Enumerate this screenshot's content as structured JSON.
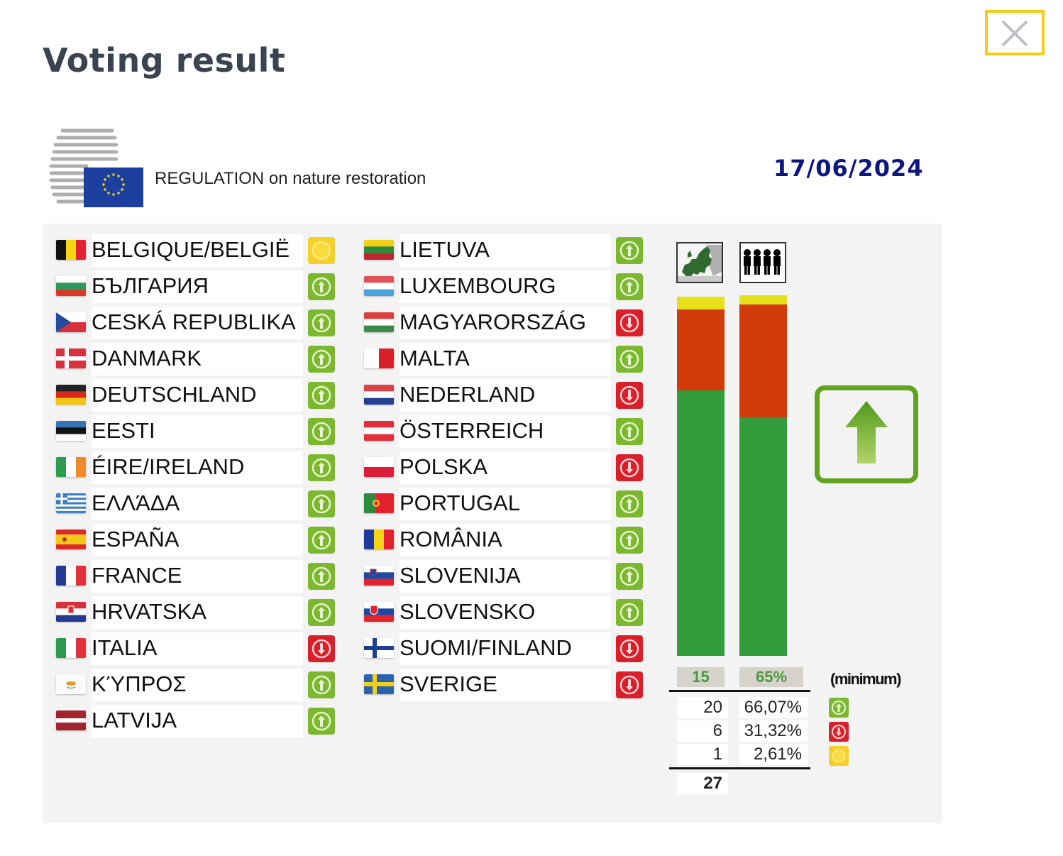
{
  "header": {
    "title": "Voting result",
    "close_icon": "close-icon"
  },
  "document": {
    "subject": "REGULATION on nature restoration",
    "date": "17/06/2024",
    "logo_icon": "council-eu-logo-icon"
  },
  "colors": {
    "yes": "#7cb82f",
    "no": "#d81f2a",
    "abstain": "#f5d02a",
    "bar_yes": "#329c3a",
    "bar_no": "#d23b0a",
    "bar_abstain": "#e6e01a",
    "date": "#0c1680",
    "close_border": "#f5cc1a"
  },
  "countries": {
    "column1": [
      {
        "name": "BELGIQUE/BELGIË",
        "vote": "abstain"
      },
      {
        "name": "БЪЛГАРИЯ",
        "vote": "yes"
      },
      {
        "name": "CESKÁ REPUBLIKA",
        "vote": "yes"
      },
      {
        "name": "DANMARK",
        "vote": "yes"
      },
      {
        "name": "DEUTSCHLAND",
        "vote": "yes"
      },
      {
        "name": "EESTI",
        "vote": "yes"
      },
      {
        "name": "ÉIRE/IRELAND",
        "vote": "yes"
      },
      {
        "name": "ΕΛΛΆΔΑ",
        "vote": "yes"
      },
      {
        "name": "ESPAÑA",
        "vote": "yes"
      },
      {
        "name": "FRANCE",
        "vote": "yes"
      },
      {
        "name": "HRVATSKA",
        "vote": "yes"
      },
      {
        "name": "ITALIA",
        "vote": "no"
      },
      {
        "name": "ΚΎΠΡΟΣ",
        "vote": "yes"
      },
      {
        "name": "LATVIJA",
        "vote": "yes"
      }
    ],
    "column2": [
      {
        "name": "LIETUVA",
        "vote": "yes"
      },
      {
        "name": "LUXEMBOURG",
        "vote": "yes"
      },
      {
        "name": "MAGYARORSZÁG",
        "vote": "no"
      },
      {
        "name": "MALTA",
        "vote": "yes"
      },
      {
        "name": "NEDERLAND",
        "vote": "no"
      },
      {
        "name": "ÖSTERREICH",
        "vote": "yes"
      },
      {
        "name": "POLSKA",
        "vote": "no"
      },
      {
        "name": "PORTUGAL",
        "vote": "yes"
      },
      {
        "name": "ROMÂNIA",
        "vote": "yes"
      },
      {
        "name": "SLOVENIJA",
        "vote": "yes"
      },
      {
        "name": "SLOVENSKO",
        "vote": "yes"
      },
      {
        "name": "SUOMI/FINLAND",
        "vote": "no"
      },
      {
        "name": "SVERIGE",
        "vote": "no"
      }
    ]
  },
  "summary": {
    "threshold_states": "15",
    "threshold_population": "65%",
    "minimum_label": "(minimum)",
    "rows": [
      {
        "type": "yes",
        "states": "20",
        "population": "66,07%"
      },
      {
        "type": "no",
        "states": "6",
        "population": "31,32%"
      },
      {
        "type": "abstain",
        "states": "1",
        "population": "2,61%"
      }
    ],
    "total_states": "27",
    "result_icon": "adopted-up-arrow-icon"
  },
  "chart_data": {
    "type": "bar",
    "title": "Voting result — REGULATION on nature restoration (17/06/2024)",
    "categories": [
      "Member States",
      "Population"
    ],
    "stacked": true,
    "series": [
      {
        "name": "In favour",
        "color": "#329c3a",
        "values": [
          20,
          66.07
        ]
      },
      {
        "name": "Against",
        "color": "#d23b0a",
        "values": [
          6,
          31.32
        ]
      },
      {
        "name": "Abstention",
        "color": "#e6e01a",
        "values": [
          1,
          2.61
        ]
      }
    ],
    "thresholds": {
      "Member States": 15,
      "Population": "65%"
    },
    "totals": {
      "Member States": 27,
      "Population": "100%"
    },
    "xlabel": "",
    "ylabel": "",
    "legend_position": "right",
    "result": "adopted"
  }
}
